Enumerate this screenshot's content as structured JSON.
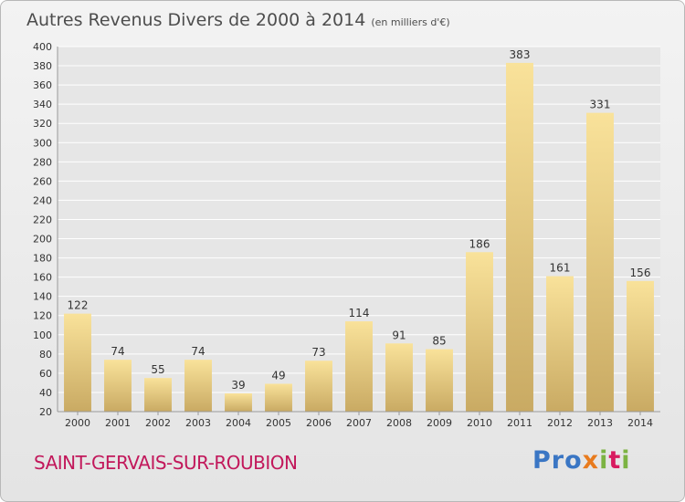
{
  "header": {
    "title": "Autres Revenus Divers de 2000 à 2014",
    "unit": "(en milliers d'€)"
  },
  "footer": {
    "commune": "SAINT-GERVAIS-SUR-ROUBION",
    "logo_text": "Proxiti"
  },
  "colors": {
    "bar_light": "#f9e29a",
    "bar_dark": "#c9aa63",
    "commune_text": "#c2185b",
    "axis_text": "#333333",
    "grid": "#ffffff"
  },
  "chart_data": {
    "type": "bar",
    "title": "Autres Revenus Divers de 2000 à 2014",
    "subtitle": "(en milliers d'€)",
    "xlabel": "",
    "ylabel": "",
    "categories": [
      "2000",
      "2001",
      "2002",
      "2003",
      "2004",
      "2005",
      "2006",
      "2007",
      "2008",
      "2009",
      "2010",
      "2011",
      "2012",
      "2013",
      "2014"
    ],
    "values": [
      122,
      74,
      55,
      74,
      39,
      49,
      73,
      114,
      91,
      85,
      186,
      383,
      161,
      331,
      156
    ],
    "ylim": [
      20,
      400
    ],
    "yticks": [
      20,
      40,
      60,
      80,
      100,
      120,
      140,
      160,
      180,
      200,
      220,
      240,
      260,
      280,
      300,
      320,
      340,
      360,
      380,
      400
    ],
    "grid": true,
    "data_labels": true
  }
}
